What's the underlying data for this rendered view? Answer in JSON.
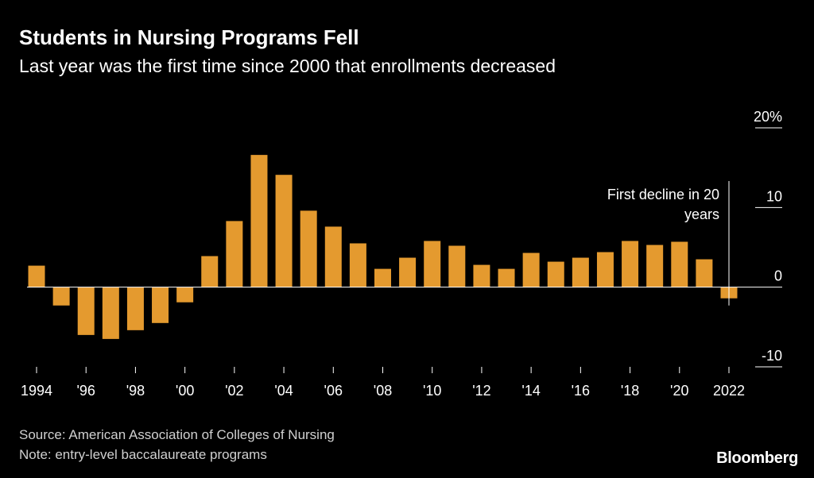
{
  "header": {
    "title": "Students in Nursing Programs Fell",
    "subtitle": "Last year was the first time since 2000 that enrollments decreased"
  },
  "footer": {
    "source": "Source: American Association of Colleges of Nursing",
    "note": "Note: entry-level baccalaureate programs",
    "brand": "Bloomberg"
  },
  "colors": {
    "bar": "#E49A2F",
    "axis": "#ffffff",
    "background": "#000000"
  },
  "chart_data": {
    "type": "bar",
    "title": "Students in Nursing Programs Fell",
    "subtitle": "Last year was the first time since 2000 that enrollments decreased",
    "xlabel": "",
    "ylabel": "",
    "ylim": [
      -10,
      20
    ],
    "yticks": [
      20,
      10,
      0,
      -10
    ],
    "ytick_labels": [
      "20%",
      "10",
      "0",
      "-10"
    ],
    "categories": [
      1994,
      1995,
      1996,
      1997,
      1998,
      1999,
      2000,
      2001,
      2002,
      2003,
      2004,
      2005,
      2006,
      2007,
      2008,
      2009,
      2010,
      2011,
      2012,
      2013,
      2014,
      2015,
      2016,
      2017,
      2018,
      2019,
      2020,
      2021,
      2022
    ],
    "values": [
      2.7,
      -2.3,
      -6.0,
      -6.5,
      -5.4,
      -4.5,
      -1.9,
      3.9,
      8.3,
      16.6,
      14.1,
      9.6,
      7.6,
      5.5,
      2.3,
      3.7,
      5.8,
      5.2,
      2.8,
      2.3,
      4.3,
      3.2,
      3.7,
      4.4,
      5.8,
      5.3,
      5.7,
      3.5,
      -1.4
    ],
    "xtick_years": [
      1994,
      1996,
      1998,
      2000,
      2002,
      2004,
      2006,
      2008,
      2010,
      2012,
      2014,
      2016,
      2018,
      2020,
      2022
    ],
    "xtick_labels": [
      "1994",
      "'96",
      "'98",
      "'00",
      "'02",
      "'04",
      "'06",
      "'08",
      "'10",
      "'12",
      "'14",
      "'16",
      "'18",
      "'20",
      "2022"
    ],
    "annotations": [
      {
        "year": 2022,
        "lines": [
          "First decline in 20",
          "years"
        ]
      }
    ],
    "grid": false
  }
}
